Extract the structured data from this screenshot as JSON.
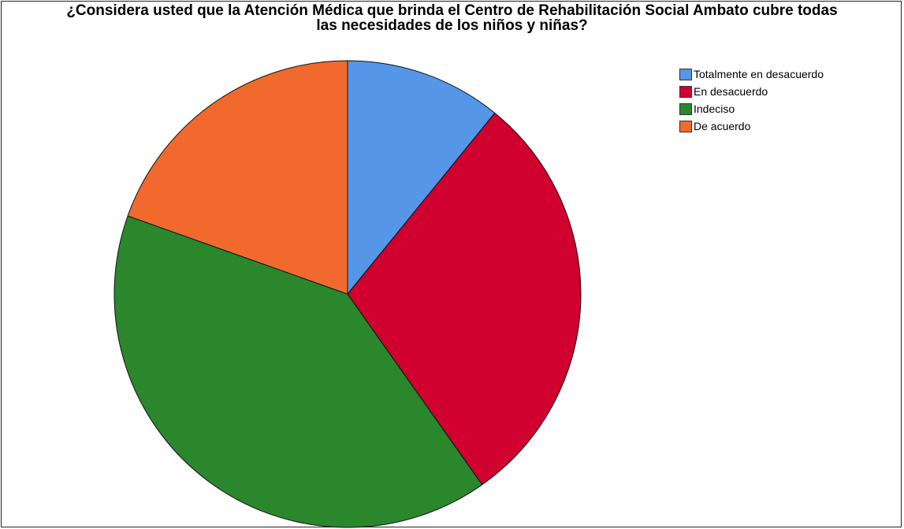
{
  "chart_data": {
    "type": "pie",
    "title_lines": [
      "¿Considera usted que la Atención Médica que brinda el Centro de Rehabilitación Social Ambato cubre todas",
      "las necesidades de los niños y niñas?"
    ],
    "series": [
      {
        "name": "Totalmente en desacuerdo",
        "value": 10,
        "color": "#5596E6"
      },
      {
        "name": "En desacuerdo",
        "value": 27,
        "color": "#D0002F"
      },
      {
        "name": "Indeciso",
        "value": 37,
        "color": "#2A872C"
      },
      {
        "name": "De acuerdo",
        "value": 18,
        "color": "#F2692D"
      }
    ],
    "start_angle_deg": 0,
    "direction": "clockwise",
    "legend_position": "top-right"
  }
}
